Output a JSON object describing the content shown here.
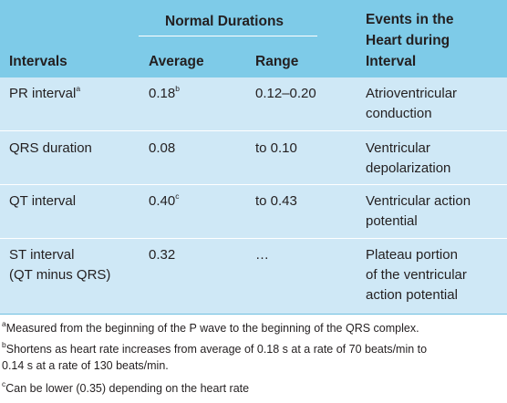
{
  "table": {
    "header": {
      "group_label": "Normal Durations",
      "col_intervals": "Intervals",
      "col_average": "Average",
      "col_range": "Range",
      "col_events_line1": "Events in the",
      "col_events_line2": "Heart during",
      "col_events_line3": "Interval"
    },
    "rows": [
      {
        "interval_line1": "PR interval",
        "interval_sup": "a",
        "interval_line2": "",
        "average": "0.18",
        "average_sup": "b",
        "range": "0.12–0.20",
        "events_line1": "Atrioventricular",
        "events_line2": "conduction",
        "events_line3": ""
      },
      {
        "interval_line1": "QRS duration",
        "interval_sup": "",
        "interval_line2": "",
        "average": "0.08",
        "average_sup": "",
        "range": "to 0.10",
        "events_line1": "Ventricular",
        "events_line2": "depolarization",
        "events_line3": ""
      },
      {
        "interval_line1": "QT interval",
        "interval_sup": "",
        "interval_line2": "",
        "average": "0.40",
        "average_sup": "c",
        "range": "to 0.43",
        "events_line1": "Ventricular action",
        "events_line2": "potential",
        "events_line3": ""
      },
      {
        "interval_line1": "ST interval",
        "interval_sup": "",
        "interval_line2": "(QT minus QRS)",
        "average": "0.32",
        "average_sup": "",
        "range": "…",
        "events_line1": "Plateau portion",
        "events_line2": "of the ventricular",
        "events_line3": "action potential"
      }
    ]
  },
  "footnotes": {
    "a_mark": "a",
    "a_text": "Measured from the beginning of the P wave to the beginning of the QRS complex.",
    "b_mark": "b",
    "b_text_line1": "Shortens as heart rate increases from average of 0.18 s at a rate of 70 beats/min to",
    "b_text_line2": "0.14 s at a rate of 130 beats/min.",
    "c_mark": "c",
    "c_text": "Can be lower (0.35) depending on the heart rate"
  },
  "colors": {
    "header_background": "#7ecbe8",
    "body_background": "#cfe8f6",
    "rule_color": "#ffffff",
    "text_color": "#231f20"
  }
}
